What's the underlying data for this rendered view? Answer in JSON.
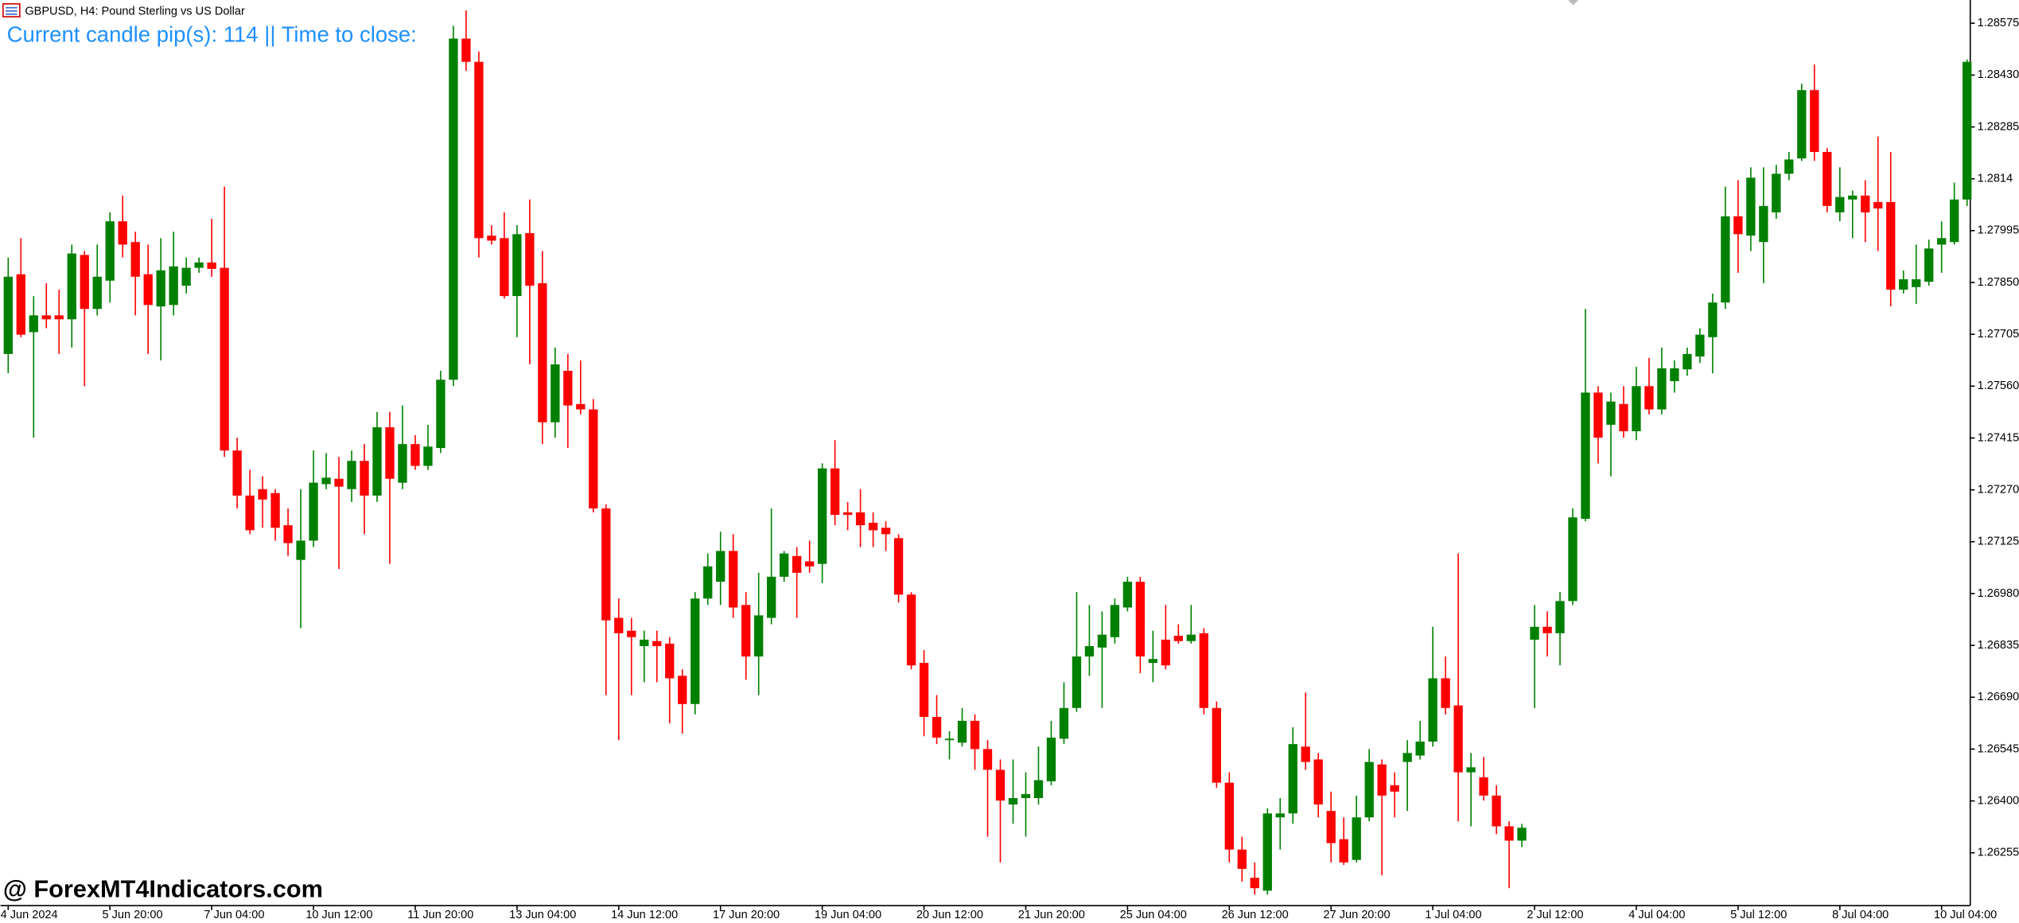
{
  "chart_data": {
    "type": "candlestick",
    "title": "GBPUSD, H4:  Pound Sterling vs US Dollar",
    "annotation": "Current candle pip(s): 114  ||  Time to close:",
    "watermark": "@ ForexMT4Indicators.com",
    "up_color": "#008000",
    "down_color": "#ff0000",
    "annotation_color": "#1e90ff",
    "categories": [
      "4 Jun 2024",
      null,
      null,
      null,
      null,
      null,
      null,
      null,
      "5 Jun 20:00",
      null,
      null,
      null,
      null,
      null,
      null,
      null,
      "7 Jun 04:00",
      null,
      null,
      null,
      null,
      null,
      null,
      null,
      "10 Jun 12:00",
      null,
      null,
      null,
      null,
      null,
      null,
      null,
      "11 Jun 20:00",
      null,
      null,
      null,
      null,
      null,
      null,
      null,
      "13 Jun 04:00",
      null,
      null,
      null,
      null,
      null,
      null,
      null,
      "14 Jun 12:00",
      null,
      null,
      null,
      null,
      null,
      null,
      null,
      "17 Jun 20:00",
      null,
      null,
      null,
      null,
      null,
      null,
      null,
      "19 Jun 04:00",
      null,
      null,
      null,
      null,
      null,
      null,
      null,
      "20 Jun 12:00",
      null,
      null,
      null,
      null,
      null,
      null,
      null,
      "21 Jun 20:00",
      null,
      null,
      null,
      null,
      null,
      null,
      null,
      "25 Jun 04:00",
      null,
      null,
      null,
      null,
      null,
      null,
      null,
      "26 Jun 12:00",
      null,
      null,
      null,
      null,
      null,
      null,
      null,
      "27 Jun 20:00",
      null,
      null,
      null,
      null,
      null,
      null,
      null,
      "1 Jul 04:00",
      null,
      null,
      null,
      null,
      null,
      null,
      null,
      "2 Jul 12:00",
      null,
      null,
      null,
      null,
      null,
      null,
      null,
      "4 Jul 04:00",
      null,
      null,
      null,
      null,
      null,
      null,
      null,
      "5 Jul 12:00",
      null,
      null,
      null,
      null,
      null,
      null,
      null,
      "8 Jul 04:00",
      null,
      null,
      null,
      null,
      null,
      null,
      null,
      "10 Jul 04:00",
      null,
      null
    ],
    "open": [
      1.2765,
      1.27873,
      1.27711,
      1.27758,
      1.27758,
      1.27747,
      1.27927,
      1.27776,
      1.27855,
      1.28021,
      1.27963,
      1.27873,
      1.27783,
      1.27787,
      1.27841,
      1.27891,
      1.27906,
      1.27891,
      1.2738,
      1.27254,
      1.27272,
      1.27261,
      1.27171,
      1.27074,
      1.27128,
      1.27286,
      1.27301,
      1.27272,
      1.27351,
      1.27254,
      1.27445,
      1.2729,
      1.27398,
      1.27337,
      1.27387,
      1.27578,
      1.28532,
      1.28467,
      1.27981,
      1.27974,
      1.27812,
      1.27988,
      1.27848,
      1.27459,
      1.27603,
      1.2751,
      1.27495,
      1.27218,
      1.26912,
      1.26876,
      1.26833,
      1.26847,
      1.2684,
      1.2675,
      1.26671,
      1.26966,
      1.27013,
      1.27099,
      1.26948,
      1.26804,
      1.26912,
      1.27027,
      1.27085,
      1.2707,
      1.27063,
      1.2733,
      1.27207,
      1.27207,
      1.27178,
      1.27164,
      1.27135,
      1.26977,
      1.26786,
      1.26635,
      1.2657,
      1.26563,
      1.26624,
      1.26545,
      1.26487,
      1.2639,
      1.26408,
      1.26408,
      1.26455,
      1.26574,
      1.2666,
      1.26804,
      1.26829,
      1.26858,
      1.26941,
      1.27013,
      1.26786,
      1.26851,
      1.26862,
      1.26847,
      1.26869,
      1.2666,
      1.26451,
      1.26264,
      1.26185,
      1.26149,
      1.26354,
      1.26365,
      1.26552,
      1.26516,
      1.26372,
      1.26293,
      1.26235,
      1.26354,
      1.26502,
      1.26444,
      1.26509,
      1.26527,
      1.26566,
      1.26743,
      1.26667,
      1.2648,
      1.26466,
      1.26415,
      1.26329,
      1.26289,
      1.26851,
      1.26887,
      1.26869,
      1.26959,
      1.27189,
      1.27542,
      1.27452,
      1.2751,
      1.27434,
      1.2756,
      1.27495,
      1.27574,
      1.27607,
      1.27643,
      1.27697,
      1.27794,
      1.28035,
      1.27981,
      1.27963,
      1.28046,
      1.28154,
      1.28197,
      1.28388,
      1.28215,
      1.28046,
      1.28082,
      1.28093,
      1.28075,
      1.28075,
      1.2783,
      1.27837,
      1.27852,
      1.27956,
      1.27963,
      1.28082
    ],
    "high": [
      1.2792,
      1.27974,
      1.27812,
      1.27848,
      1.2783,
      1.27956,
      1.27938,
      1.27956,
      1.28046,
      1.28093,
      1.27992,
      1.27956,
      1.27974,
      1.27992,
      1.2792,
      1.2792,
      1.28028,
      1.28118,
      1.27416,
      1.27326,
      1.27308,
      1.27272,
      1.27218,
      1.27272,
      1.2738,
      1.27373,
      1.27362,
      1.2738,
      1.27398,
      1.27488,
      1.27488,
      1.27506,
      1.27423,
      1.27452,
      1.27603,
      1.28568,
      1.28611,
      1.28496,
      1.2801,
      1.28046,
      1.2801,
      1.28082,
      1.27938,
      1.27668,
      1.2765,
      1.27632,
      1.27524,
      1.27229,
      1.26966,
      1.26912,
      1.26876,
      1.26876,
      1.26858,
      1.26768,
      1.26984,
      1.27092,
      1.27153,
      1.27146,
      1.26984,
      1.27038,
      1.27218,
      1.27099,
      1.2711,
      1.27128,
      1.27344,
      1.27409,
      1.27236,
      1.27272,
      1.27207,
      1.27182,
      1.27146,
      1.26984,
      1.26822,
      1.26696,
      1.26595,
      1.2666,
      1.26642,
      1.2657,
      1.26516,
      1.26516,
      1.2648,
      1.26552,
      1.26624,
      1.26732,
      1.26984,
      1.26948,
      1.2693,
      1.26966,
      1.27027,
      1.27027,
      1.26876,
      1.26948,
      1.26894,
      1.26948,
      1.26883,
      1.26678,
      1.2648,
      1.263,
      1.26228,
      1.26379,
      1.26408,
      1.26606,
      1.26703,
      1.26534,
      1.26426,
      1.26354,
      1.26415,
      1.26545,
      1.26516,
      1.2648,
      1.2657,
      1.26624,
      1.26887,
      1.26804,
      1.27092,
      1.26534,
      1.26523,
      1.26444,
      1.26343,
      1.26336,
      1.26948,
      1.2693,
      1.26984,
      1.27218,
      1.27776,
      1.2756,
      1.27542,
      1.2756,
      1.27614,
      1.27639,
      1.27668,
      1.27632,
      1.27668,
      1.27722,
      1.27819,
      1.28118,
      1.28136,
      1.28172,
      1.28172,
      1.28179,
      1.28215,
      1.28406,
      1.2846,
      1.28226,
      1.28172,
      1.28107,
      1.28136,
      1.28258,
      1.28215,
      1.27884,
      1.27956,
      1.2797,
      1.28021,
      1.28129,
      1.28474
    ],
    "low": [
      1.27596,
      1.27697,
      1.27416,
      1.27722,
      1.2765,
      1.27668,
      1.2756,
      1.27758,
      1.27794,
      1.2792,
      1.27758,
      1.2765,
      1.27632,
      1.27758,
      1.27819,
      1.27877,
      1.27866,
      1.27362,
      1.27218,
      1.27146,
      1.27164,
      1.27128,
      1.27085,
      1.26883,
      1.2711,
      1.27272,
      1.27049,
      1.27236,
      1.27146,
      1.27236,
      1.27063,
      1.27272,
      1.27326,
      1.27326,
      1.27373,
      1.2756,
      1.28442,
      1.2792,
      1.27956,
      1.27805,
      1.27697,
      1.27621,
      1.27398,
      1.27416,
      1.27387,
      1.27481,
      1.27207,
      1.26696,
      1.2657,
      1.26696,
      1.26732,
      1.26732,
      1.26617,
      1.26588,
      1.26642,
      1.26948,
      1.26948,
      1.26912,
      1.26739,
      1.26696,
      1.26894,
      1.27013,
      1.26912,
      1.27038,
      1.27009,
      1.27171,
      1.27157,
      1.2711,
      1.2711,
      1.27099,
      1.26955,
      1.26768,
      1.26581,
      1.26559,
      1.26516,
      1.26552,
      1.26487,
      1.263,
      1.26228,
      1.26336,
      1.263,
      1.2639,
      1.26444,
      1.26559,
      1.26649,
      1.2675,
      1.2666,
      1.2684,
      1.2693,
      1.26757,
      1.26732,
      1.26768,
      1.2684,
      1.2684,
      1.26642,
      1.26437,
      1.26228,
      1.26174,
      1.26138,
      1.26138,
      1.26264,
      1.26336,
      1.26487,
      1.26354,
      1.26228,
      1.26221,
      1.26228,
      1.26343,
      1.26192,
      1.26354,
      1.26372,
      1.26516,
      1.26552,
      1.26642,
      1.26343,
      1.26329,
      1.26401,
      1.26307,
      1.26156,
      1.26271,
      1.2666,
      1.26804,
      1.26779,
      1.26948,
      1.27182,
      1.27344,
      1.27308,
      1.27416,
      1.27409,
      1.27481,
      1.27481,
      1.27542,
      1.27589,
      1.27625,
      1.27596,
      1.27776,
      1.27877,
      1.27938,
      1.27848,
      1.28028,
      1.28136,
      1.2819,
      1.2819,
      1.28046,
      1.28021,
      1.27974,
      1.27963,
      1.27938,
      1.27783,
      1.27819,
      1.2779,
      1.27841,
      1.27877,
      1.27956,
      1.28064
    ],
    "close": [
      1.27866,
      1.27704,
      1.27758,
      1.27747,
      1.27747,
      1.27931,
      1.27776,
      1.27866,
      1.28021,
      1.27956,
      1.27866,
      1.27787,
      1.27884,
      1.27895,
      1.27891,
      1.27906,
      1.27888,
      1.2738,
      1.27254,
      1.27157,
      1.27243,
      1.27164,
      1.27121,
      1.27128,
      1.2729,
      1.27304,
      1.27279,
      1.27351,
      1.27254,
      1.27445,
      1.27301,
      1.27398,
      1.27337,
      1.27391,
      1.27578,
      1.28532,
      1.28467,
      1.27974,
      1.27967,
      1.27812,
      1.27985,
      1.27841,
      1.27459,
      1.27621,
      1.27506,
      1.27495,
      1.27218,
      1.26905,
      1.26869,
      1.26858,
      1.26851,
      1.26833,
      1.26743,
      1.26671,
      1.26966,
      1.27056,
      1.27099,
      1.26941,
      1.26804,
      1.26919,
      1.27027,
      1.27092,
      1.27038,
      1.27056,
      1.2733,
      1.272,
      1.272,
      1.27171,
      1.27157,
      1.27146,
      1.26977,
      1.26779,
      1.26635,
      1.26577,
      1.26574,
      1.26624,
      1.26545,
      1.26487,
      1.26401,
      1.26408,
      1.26419,
      1.26458,
      1.26577,
      1.2666,
      1.26804,
      1.26833,
      1.26865,
      1.26948,
      1.27013,
      1.26804,
      1.26797,
      1.26779,
      1.26847,
      1.26865,
      1.2666,
      1.26451,
      1.26264,
      1.2621,
      1.26156,
      1.26365,
      1.26365,
      1.26559,
      1.26509,
      1.2639,
      1.26282,
      1.26228,
      1.26354,
      1.26509,
      1.26415,
      1.26426,
      1.26534,
      1.26566,
      1.26743,
      1.2666,
      1.2648,
      1.26494,
      1.26415,
      1.26329,
      1.26289,
      1.26325,
      1.26887,
      1.26869,
      1.26959,
      1.27193,
      1.27542,
      1.27416,
      1.27517,
      1.27434,
      1.2756,
      1.27495,
      1.2761,
      1.2761,
      1.2765,
      1.27704,
      1.27794,
      1.28035,
      1.27985,
      1.28143,
      1.28064,
      1.28154,
      1.28194,
      1.28388,
      1.28215,
      1.28064,
      1.28089,
      1.28093,
      1.28046,
      1.28057,
      1.2783,
      1.27859,
      1.27859,
      1.27945,
      1.27974,
      1.28082,
      1.28467
    ],
    "ylim": [
      1.26109,
      1.2864
    ],
    "yticks": [
      1.28575,
      {
        "value": 1.2843,
        "label": "1.28430"
      },
      1.28285,
      1.2814,
      1.27995,
      {
        "value": 1.2785,
        "label": "1.27850"
      },
      1.27705,
      {
        "value": 1.2756,
        "label": "1.27560"
      },
      1.27415,
      {
        "value": 1.2727,
        "label": "1.27270"
      },
      1.27125,
      {
        "value": 1.2698,
        "label": "1.26980"
      },
      1.26835,
      {
        "value": 1.2669,
        "label": "1.26690"
      },
      1.26545,
      {
        "value": 1.264,
        "label": "1.26400"
      },
      1.26255
    ]
  }
}
